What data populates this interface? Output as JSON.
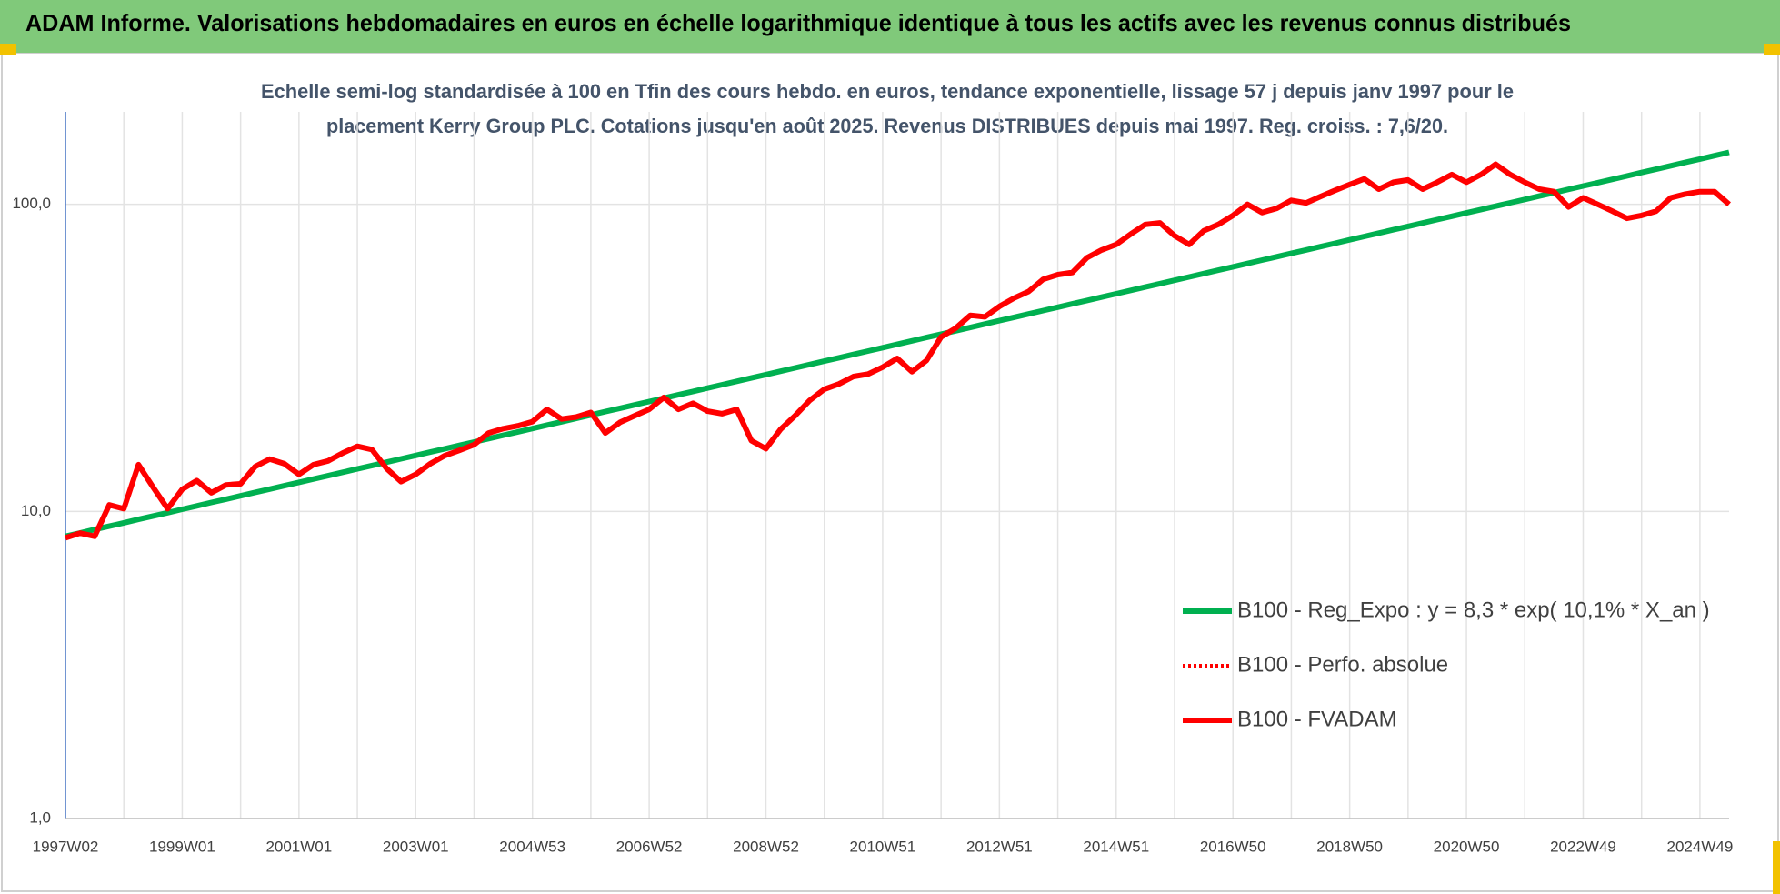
{
  "page_title": "ADAM Informe. Valorisations hebdomadaires en euros en échelle logarithmique identique à tous les actifs avec les revenus connus distribués",
  "chart_data": {
    "type": "line",
    "subtitle": [
      "Echelle semi-log standardisée à 100 en Tfin des cours hebdo. en euros, tendance exponentielle, lissage 57 j depuis janv 1997 pour le",
      "placement Kerry Group PLC. Cotations jusqu'en août 2025. Revenus DISTRIBUES depuis mai 1997. Reg. croiss. : 7,6/20."
    ],
    "log_scale": true,
    "grid": true,
    "legend": "bottom-right",
    "ylim": [
      1,
      200
    ],
    "yticks": [
      {
        "value": 1,
        "label": "1,0"
      },
      {
        "value": 10,
        "label": "10,0"
      },
      {
        "value": 100,
        "label": "100,0"
      }
    ],
    "categories": [
      "1997W02",
      null,
      null,
      null,
      null,
      null,
      null,
      null,
      "1999W01",
      null,
      null,
      null,
      null,
      null,
      null,
      null,
      "2001W01",
      null,
      null,
      null,
      null,
      null,
      null,
      null,
      "2003W01",
      null,
      null,
      null,
      null,
      null,
      null,
      null,
      "2004W53",
      null,
      null,
      null,
      null,
      null,
      null,
      null,
      "2006W52",
      null,
      null,
      null,
      null,
      null,
      null,
      null,
      "2008W52",
      null,
      null,
      null,
      null,
      null,
      null,
      null,
      "2010W51",
      null,
      null,
      null,
      null,
      null,
      null,
      null,
      "2012W51",
      null,
      null,
      null,
      null,
      null,
      null,
      null,
      "2014W51",
      null,
      null,
      null,
      null,
      null,
      null,
      null,
      "2016W50",
      null,
      null,
      null,
      null,
      null,
      null,
      null,
      "2018W50",
      null,
      null,
      null,
      null,
      null,
      null,
      null,
      "2020W50",
      null,
      null,
      null,
      null,
      null,
      null,
      null,
      "2022W49",
      null,
      null,
      null,
      null,
      null,
      null,
      null,
      "2024W49",
      null,
      null
    ],
    "series": [
      {
        "name": "B100 - Reg_Expo : y = 8,3 * exp( 10,1% *  X_an )",
        "color": "#00b050",
        "dash": "solid",
        "values": [
          8.3,
          8.51,
          8.73,
          8.95,
          9.18,
          9.42,
          9.66,
          9.9,
          10.16,
          10.42,
          10.69,
          10.96,
          11.24,
          11.53,
          11.82,
          12.12,
          12.43,
          12.75,
          13.07,
          13.41,
          13.75,
          14.1,
          14.46,
          14.83,
          15.21,
          15.6,
          16.0,
          16.41,
          16.83,
          17.26,
          17.7,
          18.15,
          18.62,
          19.1,
          19.58,
          20.08,
          20.6,
          21.13,
          21.67,
          22.22,
          22.79,
          23.37,
          23.97,
          24.58,
          25.21,
          25.86,
          26.52,
          27.2,
          27.89,
          28.6,
          29.33,
          30.08,
          30.85,
          31.64,
          32.45,
          33.28,
          34.14,
          35.01,
          35.91,
          36.83,
          37.77,
          38.73,
          39.72,
          40.74,
          41.78,
          42.85,
          43.94,
          45.07,
          46.22,
          47.4,
          48.61,
          49.86,
          51.13,
          52.44,
          53.78,
          55.15,
          56.56,
          58.01,
          59.49,
          61.01,
          62.58,
          64.18,
          65.82,
          67.5,
          69.23,
          71.0,
          72.82,
          74.68,
          76.6,
          78.56,
          80.57,
          82.63,
          84.74,
          86.91,
          89.13,
          91.41,
          93.75,
          96.15,
          98.61,
          101.1,
          103.7,
          106.4,
          109.1,
          111.9,
          114.7,
          117.6,
          120.6,
          123.7,
          126.9,
          130.1,
          133.5,
          136.9,
          140.4,
          144.0,
          147.7
        ]
      },
      {
        "name": "B100 - Perfo. absolue",
        "color": "#ff0000",
        "dash": "dotted"
      },
      {
        "name": "B100 - FVADAM",
        "color": "#ff0000",
        "dash": "solid",
        "values": [
          8.2,
          8.5,
          8.3,
          10.5,
          10.2,
          14.2,
          12.0,
          10.2,
          11.8,
          12.6,
          11.5,
          12.2,
          12.3,
          14.0,
          14.8,
          14.3,
          13.2,
          14.2,
          14.6,
          15.5,
          16.3,
          15.9,
          13.8,
          12.5,
          13.2,
          14.3,
          15.2,
          15.8,
          16.5,
          18.0,
          18.6,
          19.0,
          19.6,
          21.5,
          20.0,
          20.3,
          21.0,
          18.0,
          19.5,
          20.5,
          21.5,
          23.5,
          21.5,
          22.5,
          21.2,
          20.8,
          21.5,
          17.0,
          16.0,
          18.5,
          20.5,
          23.0,
          25.0,
          26.0,
          27.5,
          28.0,
          29.5,
          31.5,
          28.5,
          31.0,
          37.0,
          39.5,
          43.5,
          43.0,
          46.5,
          49.5,
          52.0,
          57.0,
          59.0,
          60.0,
          67.0,
          71.0,
          74.0,
          80.0,
          86.0,
          87.0,
          79.0,
          74.0,
          82.0,
          86.0,
          92.0,
          100.0,
          94.0,
          97.0,
          103.0,
          101.0,
          106.0,
          111.0,
          116.0,
          121.0,
          112.0,
          118.0,
          120.0,
          112.0,
          118.0,
          125.0,
          118.0,
          125.0,
          135.0,
          125.0,
          118.0,
          112.0,
          110.0,
          98.0,
          105.0,
          100.0,
          95.0,
          90.0,
          92.0,
          95.0,
          105.0,
          108.0,
          110.0,
          110.0,
          100.0
        ]
      }
    ]
  }
}
